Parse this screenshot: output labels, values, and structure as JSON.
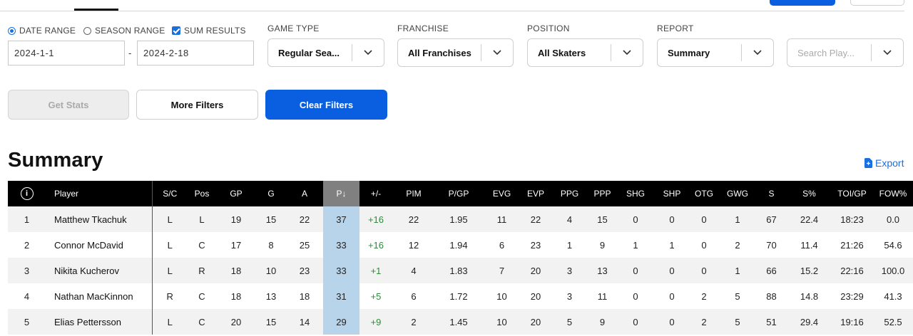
{
  "filters": {
    "date_range_label": "DATE RANGE",
    "season_range_label": "SEASON RANGE",
    "sum_results_label": "SUM RESULTS",
    "start_date": "2024-1-1",
    "date_separator": "-",
    "end_date": "2024-2-18",
    "game_type": {
      "label": "GAME TYPE",
      "value": "Regular Sea..."
    },
    "franchise": {
      "label": "FRANCHISE",
      "value": "All Franchises"
    },
    "position": {
      "label": "POSITION",
      "value": "All Skaters"
    },
    "report": {
      "label": "REPORT",
      "value": "Summary"
    },
    "search": {
      "placeholder": "Search Play..."
    }
  },
  "buttons": {
    "get_stats": "Get Stats",
    "more_filters": "More Filters",
    "clear_filters": "Clear Filters"
  },
  "section": {
    "title": "Summary",
    "export_label": "Export"
  },
  "table": {
    "info_glyph": "i",
    "columns": [
      "Player",
      "S/C",
      "Pos",
      "GP",
      "G",
      "A",
      "P↓",
      "+/-",
      "PIM",
      "P/GP",
      "EVG",
      "EVP",
      "PPG",
      "PPP",
      "SHG",
      "SHP",
      "OTG",
      "GWG",
      "S",
      "S%",
      "TOI/GP",
      "FOW%"
    ],
    "rows": [
      [
        "1",
        "Matthew Tkachuk",
        "L",
        "L",
        "19",
        "15",
        "22",
        "37",
        "+16",
        "22",
        "1.95",
        "11",
        "22",
        "4",
        "15",
        "0",
        "0",
        "0",
        "1",
        "67",
        "22.4",
        "18:23",
        "0.0"
      ],
      [
        "2",
        "Connor McDavid",
        "L",
        "C",
        "17",
        "8",
        "25",
        "33",
        "+16",
        "12",
        "1.94",
        "6",
        "23",
        "1",
        "9",
        "1",
        "1",
        "0",
        "2",
        "70",
        "11.4",
        "21:26",
        "54.6"
      ],
      [
        "3",
        "Nikita Kucherov",
        "L",
        "R",
        "18",
        "10",
        "23",
        "33",
        "+1",
        "4",
        "1.83",
        "7",
        "20",
        "3",
        "13",
        "0",
        "0",
        "0",
        "1",
        "66",
        "15.2",
        "22:16",
        "100.0"
      ],
      [
        "4",
        "Nathan MacKinnon",
        "R",
        "C",
        "18",
        "13",
        "18",
        "31",
        "+5",
        "6",
        "1.72",
        "10",
        "20",
        "3",
        "11",
        "0",
        "0",
        "2",
        "5",
        "88",
        "14.8",
        "23:29",
        "41.3"
      ],
      [
        "5",
        "Elias Pettersson",
        "L",
        "C",
        "20",
        "15",
        "14",
        "29",
        "+9",
        "2",
        "1.45",
        "10",
        "20",
        "5",
        "9",
        "0",
        "0",
        "2",
        "5",
        "51",
        "29.4",
        "19:16",
        "52.5"
      ]
    ]
  },
  "colors": {
    "accent": "#0a5ee0",
    "sorted_column": "#b7d4ea",
    "plus_minus": "#2e8b3a"
  }
}
